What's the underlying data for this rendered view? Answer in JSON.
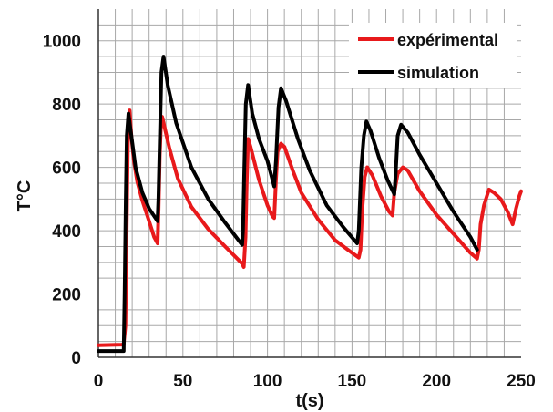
{
  "chart_data": {
    "type": "line",
    "title": "",
    "xlabel": "t(s)",
    "ylabel": "T°C",
    "xlim": [
      0,
      250
    ],
    "ylim": [
      0,
      1100
    ],
    "x_ticks": [
      0,
      50,
      100,
      150,
      200,
      250
    ],
    "y_ticks": [
      0,
      200,
      400,
      600,
      800,
      1000
    ],
    "grid": true,
    "legend_position": "top-right",
    "series": [
      {
        "name": "expérimental",
        "color": "#e8191b",
        "points": [
          [
            0,
            38
          ],
          [
            14,
            40
          ],
          [
            15,
            42
          ],
          [
            16,
            100
          ],
          [
            16.5,
            300
          ],
          [
            17,
            520
          ],
          [
            17.5,
            700
          ],
          [
            18.5,
            780
          ],
          [
            19.5,
            700
          ],
          [
            21,
            620
          ],
          [
            23,
            555
          ],
          [
            26,
            495
          ],
          [
            30,
            430
          ],
          [
            33,
            380
          ],
          [
            35,
            360
          ],
          [
            35.6,
            470
          ],
          [
            36.3,
            640
          ],
          [
            37,
            735
          ],
          [
            37.7,
            760
          ],
          [
            39,
            730
          ],
          [
            42,
            660
          ],
          [
            47,
            565
          ],
          [
            55,
            475
          ],
          [
            65,
            405
          ],
          [
            75,
            350
          ],
          [
            85,
            296
          ],
          [
            86,
            285
          ],
          [
            87,
            380
          ],
          [
            87.7,
            550
          ],
          [
            88.6,
            690
          ],
          [
            90,
            665
          ],
          [
            95,
            560
          ],
          [
            100,
            480
          ],
          [
            103,
            445
          ],
          [
            104,
            440
          ],
          [
            105,
            560
          ],
          [
            106,
            650
          ],
          [
            108,
            675
          ],
          [
            110,
            665
          ],
          [
            115,
            590
          ],
          [
            120,
            520
          ],
          [
            130,
            435
          ],
          [
            140,
            370
          ],
          [
            150,
            330
          ],
          [
            154,
            315
          ],
          [
            155,
            340
          ],
          [
            156,
            460
          ],
          [
            157.5,
            570
          ],
          [
            159,
            600
          ],
          [
            162,
            575
          ],
          [
            167,
            510
          ],
          [
            172,
            460
          ],
          [
            174,
            448
          ],
          [
            175,
            520
          ],
          [
            177,
            580
          ],
          [
            180,
            600
          ],
          [
            183,
            590
          ],
          [
            190,
            525
          ],
          [
            200,
            450
          ],
          [
            210,
            390
          ],
          [
            220,
            330
          ],
          [
            224,
            312
          ],
          [
            225,
            340
          ],
          [
            226,
            420
          ],
          [
            228,
            480
          ],
          [
            231,
            530
          ],
          [
            234,
            520
          ],
          [
            238,
            500
          ],
          [
            242,
            460
          ],
          [
            245,
            420
          ],
          [
            247,
            470
          ],
          [
            249,
            510
          ],
          [
            250,
            525
          ]
        ]
      },
      {
        "name": "simulation",
        "color": "#000000",
        "points": [
          [
            0,
            20
          ],
          [
            15,
            20
          ],
          [
            15.5,
            200
          ],
          [
            16.2,
            500
          ],
          [
            16.8,
            700
          ],
          [
            17.8,
            770
          ],
          [
            19.5,
            700
          ],
          [
            22,
            600
          ],
          [
            26,
            520
          ],
          [
            30,
            470
          ],
          [
            35,
            430
          ],
          [
            35.5,
            500
          ],
          [
            36.5,
            720
          ],
          [
            37.3,
            900
          ],
          [
            38.5,
            950
          ],
          [
            41,
            860
          ],
          [
            46,
            740
          ],
          [
            55,
            600
          ],
          [
            65,
            500
          ],
          [
            75,
            425
          ],
          [
            85,
            355
          ],
          [
            85.5,
            400
          ],
          [
            86.3,
            600
          ],
          [
            87.2,
            800
          ],
          [
            88.5,
            860
          ],
          [
            91,
            770
          ],
          [
            95,
            690
          ],
          [
            100,
            620
          ],
          [
            104,
            540
          ],
          [
            105,
            620
          ],
          [
            106.5,
            790
          ],
          [
            108,
            850
          ],
          [
            111,
            810
          ],
          [
            118,
            690
          ],
          [
            125,
            590
          ],
          [
            135,
            480
          ],
          [
            145,
            410
          ],
          [
            153,
            360
          ],
          [
            154,
            400
          ],
          [
            155.5,
            600
          ],
          [
            157,
            700
          ],
          [
            158.5,
            745
          ],
          [
            161,
            715
          ],
          [
            166,
            630
          ],
          [
            171,
            560
          ],
          [
            175,
            515
          ],
          [
            175.8,
            580
          ],
          [
            177,
            700
          ],
          [
            179,
            735
          ],
          [
            183,
            710
          ],
          [
            190,
            640
          ],
          [
            200,
            550
          ],
          [
            210,
            460
          ],
          [
            220,
            380
          ],
          [
            224,
            340
          ]
        ]
      }
    ]
  }
}
